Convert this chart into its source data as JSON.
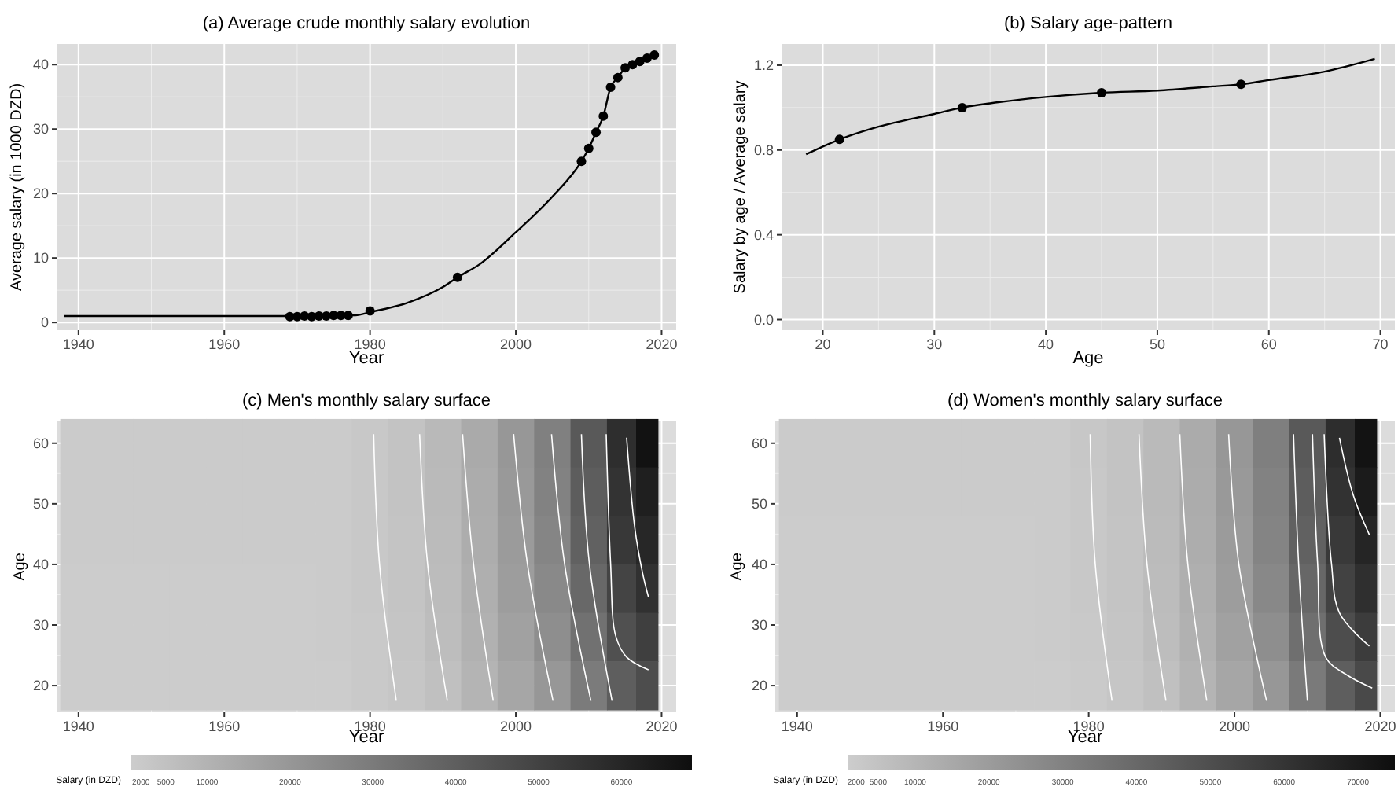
{
  "chart_data": [
    {
      "type": "line",
      "title": "(a) Average crude monthly salary evolution",
      "xlabel": "Year",
      "ylabel": "Average salary (in 1000 DZD)",
      "xlim": [
        1937,
        2022
      ],
      "ylim": [
        -1.2,
        43.2
      ],
      "xticks": [
        1940,
        1960,
        1980,
        2000,
        2020
      ],
      "yticks": [
        0,
        10,
        20,
        30,
        40
      ],
      "grid": true,
      "series": [
        {
          "type": "line",
          "color": "#000000",
          "x": [
            1938,
            1950,
            1960,
            1970,
            1978,
            1980,
            1985,
            1990,
            1992,
            1995,
            2000,
            2005,
            2009,
            2010,
            2011,
            2012,
            2013,
            2014,
            2015,
            2016,
            2017,
            2018,
            2019
          ],
          "values": [
            1.0,
            1.0,
            1.0,
            1.0,
            1.1,
            1.6,
            3,
            5.5,
            7,
            9,
            14,
            19.5,
            25,
            27,
            29.5,
            32,
            36.5,
            38,
            39.5,
            40,
            40.5,
            41,
            41.5
          ]
        },
        {
          "type": "scatter",
          "marker": "circle",
          "color": "#000000",
          "x": [
            1969,
            1970,
            1971,
            1972,
            1973,
            1974,
            1975,
            1976,
            1977,
            1980,
            1992,
            2009,
            2010,
            2011,
            2012,
            2013,
            2014,
            2015,
            2016,
            2017,
            2018,
            2019
          ],
          "values": [
            0.9,
            0.9,
            1.0,
            0.9,
            1.0,
            1.0,
            1.1,
            1.1,
            1.1,
            1.8,
            7,
            25,
            27,
            29.5,
            32,
            36.5,
            38,
            39.5,
            40,
            40.5,
            41,
            41.5
          ]
        }
      ]
    },
    {
      "type": "line",
      "title": "(b) Salary age-pattern",
      "xlabel": "Age",
      "ylabel": "Salary by age / Average salary",
      "xlim": [
        16.3,
        71.3
      ],
      "ylim": [
        -0.05,
        1.3
      ],
      "xticks": [
        20,
        30,
        40,
        50,
        60,
        70
      ],
      "yticks": [
        {
          "value": 0,
          "label": "0.0"
        },
        0.4,
        0.8,
        1.2
      ],
      "grid": true,
      "series": [
        {
          "type": "line",
          "color": "#000000",
          "x": [
            18.5,
            21.5,
            25,
            30,
            32.5,
            35,
            40,
            45,
            50,
            55,
            57.5,
            60,
            65,
            69.5
          ],
          "values": [
            0.78,
            0.85,
            0.91,
            0.97,
            1.0,
            1.02,
            1.05,
            1.07,
            1.08,
            1.1,
            1.11,
            1.13,
            1.17,
            1.23
          ]
        },
        {
          "type": "scatter",
          "marker": "circle",
          "color": "#000000",
          "x": [
            21.5,
            32.5,
            45,
            57.5
          ],
          "values": [
            0.85,
            1.0,
            1.07,
            1.11
          ]
        }
      ]
    },
    {
      "type": "heatmap",
      "title": "(c) Men's monthly salary surface",
      "xlabel": "Year",
      "ylabel": "Age",
      "clabel": "Salary (in DZD)",
      "xlim": [
        1937,
        2022
      ],
      "ylim": [
        15.6,
        63.6
      ],
      "xticks": [
        1940,
        1960,
        1980,
        2000,
        2020
      ],
      "yticks": [
        20,
        30,
        40,
        50,
        60
      ],
      "grid": true,
      "clim": [
        750,
        68500
      ],
      "cticks": [
        2000,
        5000,
        10000,
        20000,
        30000,
        40000,
        50000,
        60000
      ],
      "series": [
        {
          "type": "line",
          "color": "#ffffff",
          "x": [
            1980.5,
            1981.3,
            1983.6
          ],
          "values": [
            61.5,
            40,
            17.5
          ]
        },
        {
          "type": "line",
          "color": "#ffffff",
          "x": [
            1986.8,
            1987.9,
            1990.6
          ],
          "values": [
            61.5,
            40,
            17.5
          ]
        },
        {
          "type": "line",
          "color": "#ffffff",
          "x": [
            1992.7,
            1994.2,
            1996.9
          ],
          "values": [
            61.5,
            40,
            17.5
          ]
        },
        {
          "type": "line",
          "color": "#ffffff",
          "x": [
            1999.7,
            2001.6,
            2005.1
          ],
          "values": [
            61.5,
            40,
            17.5
          ]
        },
        {
          "type": "line",
          "color": "#ffffff",
          "x": [
            2004.9,
            2006.7,
            2010.3
          ],
          "values": [
            61.5,
            40,
            17.5
          ]
        },
        {
          "type": "line",
          "color": "#ffffff",
          "x": [
            2009,
            2010.1,
            2013.2
          ],
          "values": [
            61.5,
            40,
            17.5
          ]
        },
        {
          "type": "line",
          "color": "#ffffff",
          "x": [
            2012.4,
            2013,
            2013.7,
            2015.2,
            2018.2
          ],
          "values": [
            61.5,
            40.2,
            28.2,
            24.7,
            22.6
          ]
        },
        {
          "type": "line",
          "color": "#ffffff",
          "x": [
            2015.2,
            2016.3,
            2017.4,
            2018.2
          ],
          "values": [
            60.9,
            46.2,
            38.5,
            34.6
          ]
        }
      ],
      "x": [
        1940,
        1945,
        1950,
        1955,
        1960,
        1965,
        1970,
        1975,
        1980,
        1985,
        1990,
        1995,
        2000,
        2005,
        2010,
        2015,
        2018
      ],
      "y": [
        60,
        52,
        44,
        36,
        28,
        20
      ],
      "cells": [
        [
          1400,
          1400,
          1400,
          1400,
          1400,
          1400,
          1400,
          1600,
          2700,
          4400,
          7700,
          13000,
          20000,
          28000,
          42000,
          57000,
          67000
        ],
        [
          1370,
          1370,
          1370,
          1370,
          1370,
          1370,
          1370,
          1560,
          2620,
          4250,
          7450,
          12600,
          19200,
          27200,
          40500,
          55500,
          62500
        ],
        [
          1330,
          1330,
          1330,
          1330,
          1330,
          1330,
          1330,
          1520,
          2540,
          4100,
          7200,
          12200,
          18500,
          26400,
          39000,
          53500,
          59500
        ],
        [
          1270,
          1270,
          1270,
          1270,
          1270,
          1270,
          1270,
          1460,
          2420,
          3900,
          6800,
          11500,
          17600,
          25000,
          36500,
          49500,
          56000
        ],
        [
          1170,
          1170,
          1170,
          1170,
          1170,
          1170,
          1170,
          1360,
          2250,
          3600,
          6300,
          10600,
          16300,
          23000,
          33500,
          45000,
          51000
        ],
        [
          1000,
          1000,
          1000,
          1000,
          1000,
          1000,
          1000,
          1200,
          2000,
          3200,
          5500,
          9500,
          14500,
          20000,
          30000,
          40000,
          46000
        ]
      ]
    },
    {
      "type": "heatmap",
      "title": "(d) Women's monthly salary surface",
      "xlabel": "Year",
      "ylabel": "Age",
      "clabel": "Salary (in DZD)",
      "xlim": [
        1937,
        2022
      ],
      "ylim": [
        15.6,
        63.6
      ],
      "xticks": [
        1940,
        1960,
        1980,
        2000,
        2020
      ],
      "yticks": [
        20,
        30,
        40,
        50,
        60
      ],
      "grid": true,
      "clim": [
        850,
        75000
      ],
      "cticks": [
        2000,
        5000,
        10000,
        20000,
        30000,
        40000,
        50000,
        60000,
        70000
      ],
      "series": [
        {
          "type": "line",
          "color": "#ffffff",
          "x": [
            1980.2,
            1980.9,
            1983.2
          ],
          "values": [
            61.5,
            40,
            17.5
          ]
        },
        {
          "type": "line",
          "color": "#ffffff",
          "x": [
            1986.9,
            1988,
            1990.6
          ],
          "values": [
            61.5,
            40,
            17.5
          ]
        },
        {
          "type": "line",
          "color": "#ffffff",
          "x": [
            1992.5,
            1993.6,
            1996.2
          ],
          "values": [
            61.5,
            40,
            17.5
          ]
        },
        {
          "type": "line",
          "color": "#ffffff",
          "x": [
            1999.2,
            2000.6,
            2004.4
          ],
          "values": [
            61.5,
            40,
            17.5
          ]
        },
        {
          "type": "line",
          "color": "#ffffff",
          "x": [
            2008.1,
            2008.8,
            2010
          ],
          "values": [
            61.5,
            40,
            17.5
          ]
        },
        {
          "type": "line",
          "color": "#ffffff",
          "x": [
            2010.7,
            2011.4,
            2012.5,
            2015.5,
            2018.9
          ],
          "values": [
            61.5,
            40.2,
            24.7,
            21.7,
            19.6
          ]
        },
        {
          "type": "line",
          "color": "#ffffff",
          "x": [
            2012.3,
            2013.3,
            2014.4,
            2018.5
          ],
          "values": [
            61.5,
            40.2,
            32,
            26.5
          ]
        },
        {
          "type": "line",
          "color": "#ffffff",
          "x": [
            2014.4,
            2016.3,
            2018.5
          ],
          "values": [
            60.9,
            51.4,
            44.9
          ]
        }
      ],
      "x": [
        1940,
        1945,
        1950,
        1955,
        1960,
        1965,
        1970,
        1975,
        1980,
        1985,
        1990,
        1995,
        2000,
        2005,
        2010,
        2015,
        2018
      ],
      "y": [
        60,
        52,
        44,
        36,
        28,
        20
      ],
      "cells": [
        [
          1500,
          1500,
          1500,
          1500,
          1500,
          1500,
          1500,
          1700,
          3000,
          4800,
          8400,
          14000,
          22000,
          31000,
          46000,
          63000,
          73000
        ],
        [
          1460,
          1460,
          1460,
          1460,
          1460,
          1460,
          1460,
          1660,
          2920,
          4650,
          8150,
          13700,
          21200,
          30000,
          44500,
          61000,
          70000
        ],
        [
          1420,
          1420,
          1420,
          1420,
          1420,
          1420,
          1420,
          1620,
          2800,
          4500,
          7850,
          13200,
          20400,
          29000,
          42800,
          58500,
          66000
        ],
        [
          1360,
          1360,
          1360,
          1360,
          1360,
          1360,
          1360,
          1560,
          2650,
          4300,
          7450,
          12600,
          19500,
          27600,
          40500,
          55000,
          62000
        ],
        [
          1280,
          1280,
          1280,
          1280,
          1280,
          1280,
          1280,
          1470,
          2480,
          4000,
          6900,
          11700,
          18000,
          25500,
          37500,
          50500,
          57000
        ],
        [
          1100,
          1100,
          1100,
          1100,
          1100,
          1100,
          1100,
          1300,
          2200,
          3500,
          6000,
          10500,
          16000,
          22000,
          33000,
          44000,
          52000
        ]
      ]
    }
  ]
}
